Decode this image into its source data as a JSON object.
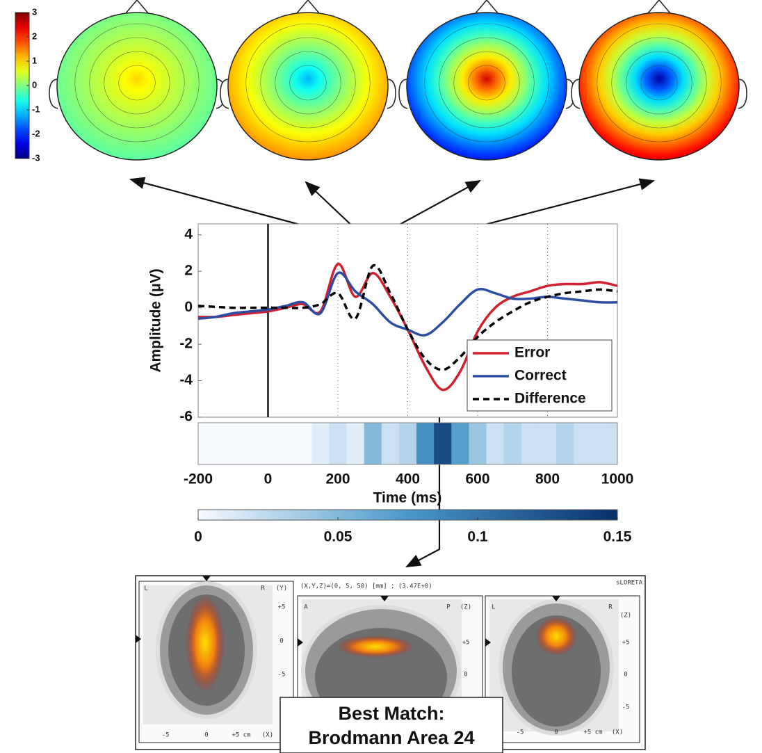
{
  "chart_data": [
    {
      "type": "topomap",
      "colorbar_lim": [
        -3,
        3
      ],
      "colorbar_ticks": [
        3,
        2,
        1,
        0,
        -1,
        -2,
        -3
      ],
      "maps": [
        {
          "center": 1,
          "edge": -0.3
        },
        {
          "center": -1.2,
          "edge": 1.6
        },
        {
          "center": 2.5,
          "edge": -2.5
        },
        {
          "center": -2.8,
          "edge": 2.8
        }
      ]
    },
    {
      "type": "line",
      "ylabel": "Amplitude (μV)",
      "xlabel": "Time (ms)",
      "x": [
        -200,
        -150,
        -100,
        -50,
        0,
        50,
        100,
        150,
        200,
        250,
        300,
        350,
        400,
        450,
        500,
        550,
        600,
        650,
        700,
        750,
        800,
        850,
        900,
        950,
        1000
      ],
      "series": [
        {
          "name": "Error",
          "color": "#d2202f",
          "style": "solid",
          "values": [
            -0.5,
            -0.5,
            -0.4,
            -0.3,
            -0.2,
            0,
            0.2,
            -0.2,
            2.4,
            0.6,
            1.9,
            0.6,
            -1.2,
            -3.2,
            -4.5,
            -3.5,
            -1.3,
            0.0,
            0.6,
            0.9,
            1.2,
            1.3,
            1.3,
            1.4,
            1.2
          ]
        },
        {
          "name": "Correct",
          "color": "#2b4ea2",
          "style": "solid",
          "values": [
            -0.6,
            -0.5,
            -0.3,
            -0.2,
            -0.1,
            0.1,
            0.3,
            -0.3,
            1.9,
            0.9,
            0.2,
            -0.8,
            -1.2,
            -1.5,
            -0.8,
            0.2,
            1.0,
            0.8,
            0.5,
            0.5,
            0.6,
            0.5,
            0.4,
            0.3,
            0.3
          ]
        },
        {
          "name": "Difference",
          "color": "#000000",
          "style": "dashed",
          "values": [
            0.1,
            0.05,
            0,
            0,
            0,
            0,
            0,
            0.2,
            0.8,
            -0.6,
            2.3,
            0.8,
            -1.2,
            -2.8,
            -3.4,
            -2.7,
            -1.6,
            -0.8,
            -0.2,
            0.3,
            0.6,
            0.8,
            0.9,
            1.0,
            0.9
          ]
        }
      ],
      "xlim": [
        -200,
        1000
      ],
      "ylim": [
        -6,
        4.6
      ],
      "xticks": [
        -200,
        0,
        200,
        400,
        600,
        800,
        1000
      ],
      "yticks": [
        -6,
        -4,
        -2,
        0,
        2,
        4
      ],
      "grid": "x",
      "vline": 0,
      "legend": "lower right"
    },
    {
      "type": "heatmap",
      "x": [
        -200,
        -150,
        -100,
        -50,
        0,
        50,
        100,
        150,
        200,
        250,
        300,
        350,
        400,
        450,
        500,
        550,
        600,
        650,
        700,
        750,
        800,
        850,
        900,
        950,
        1000
      ],
      "values": [
        0,
        0,
        0,
        0,
        0,
        0,
        0,
        0.01,
        0.02,
        0.01,
        0.05,
        0.02,
        0.03,
        0.08,
        0.13,
        0.07,
        0.04,
        0.02,
        0.03,
        0.02,
        0.02,
        0.03,
        0.02,
        0.02,
        0.02
      ],
      "colorbar_lim": [
        0,
        0.15
      ],
      "colorbar_ticks": [
        0,
        0.05,
        0.1,
        0.15
      ]
    }
  ],
  "brain": {
    "coordinates": "(X,Y,Z)=(0, 5, 50) [mm] ; (3.47E+0)",
    "method": "sLORETA",
    "panels": [
      {
        "labels": [
          "L",
          "R",
          "(Y)",
          "+5",
          "0",
          "-5",
          "-5",
          "0",
          "+5 cm",
          "(X)"
        ]
      },
      {
        "labels": [
          "A",
          "P",
          "(Z)",
          "+5",
          "0"
        ]
      },
      {
        "labels": [
          "L",
          "R",
          "(Z)",
          "+5",
          "0",
          "-5",
          "-5",
          "0",
          "+5 cm",
          "(X)"
        ]
      }
    ],
    "best_match": [
      "Best Match:",
      "Brodmann Area 24"
    ]
  }
}
